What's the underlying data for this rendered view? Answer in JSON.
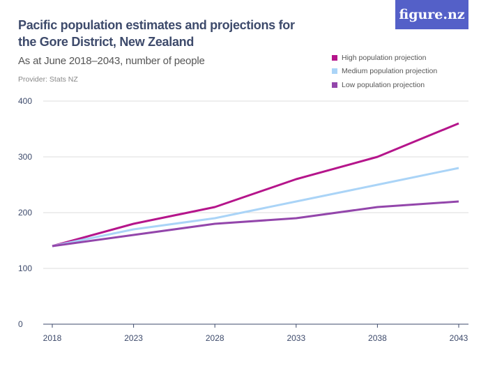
{
  "logo": "figure.nz",
  "chart_data": {
    "type": "line",
    "title": "Pacific population estimates and projections for the Gore District, New Zealand",
    "subtitle": "As at June 2018–2043, number of people",
    "provider": "Provider: Stats NZ",
    "x": [
      "2018",
      "2023",
      "2028",
      "2033",
      "2038",
      "2043"
    ],
    "ylim": [
      0,
      400
    ],
    "yticks": [
      "0",
      "100",
      "200",
      "300",
      "400"
    ],
    "grid": true,
    "legend_position": "top-right",
    "series": [
      {
        "name": "High population projection",
        "color": "#b5158b",
        "values": [
          140,
          180,
          210,
          260,
          300,
          360
        ]
      },
      {
        "name": "Medium population projection",
        "color": "#aad4f7",
        "values": [
          140,
          170,
          190,
          220,
          250,
          280
        ]
      },
      {
        "name": "Low population projection",
        "color": "#9346ab",
        "values": [
          140,
          160,
          180,
          190,
          210,
          220
        ]
      }
    ]
  }
}
